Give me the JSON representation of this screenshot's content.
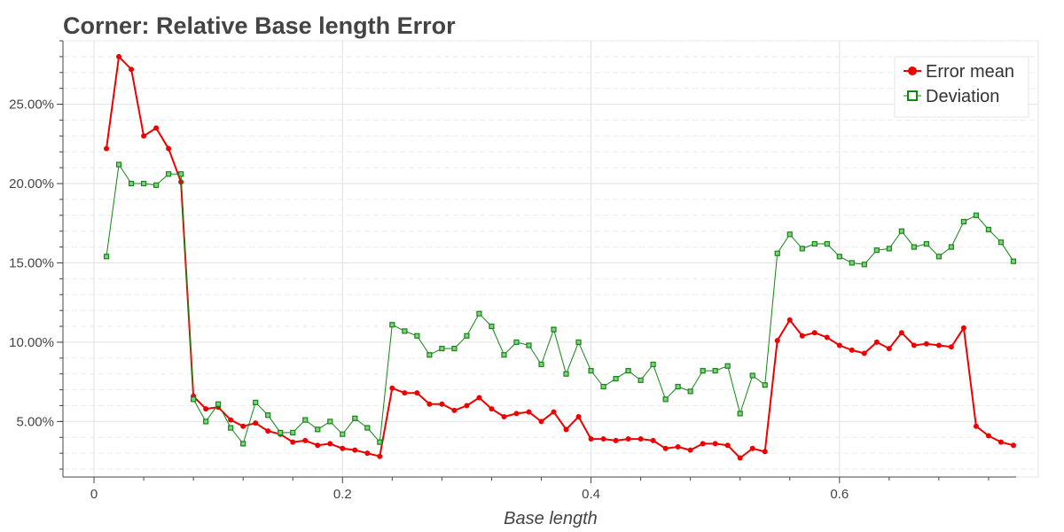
{
  "chart_data": {
    "type": "line",
    "title": "Corner: Relative Base length Error",
    "xlabel": "Base length",
    "ylabel": "",
    "xlim": [
      -0.025,
      0.76
    ],
    "ylim": [
      0.015,
      0.29
    ],
    "x_ticks": [
      {
        "value": 0,
        "label": "0"
      },
      {
        "value": 0.2,
        "label": "0.2"
      },
      {
        "value": 0.4,
        "label": "0.4"
      },
      {
        "value": 0.6,
        "label": "0.6"
      }
    ],
    "y_ticks": [
      {
        "value": 0.05,
        "label": "5.00%"
      },
      {
        "value": 0.1,
        "label": "10.00%"
      },
      {
        "value": 0.15,
        "label": "15.00%"
      },
      {
        "value": 0.2,
        "label": "20.00%"
      },
      {
        "value": 0.25,
        "label": "25.00%"
      }
    ],
    "grid": true,
    "legend_position": "top-right",
    "x": [
      0.01,
      0.02,
      0.03,
      0.04,
      0.05,
      0.06,
      0.07,
      0.08,
      0.09,
      0.1,
      0.11,
      0.12,
      0.13,
      0.14,
      0.15,
      0.16,
      0.17,
      0.18,
      0.19,
      0.2,
      0.21,
      0.22,
      0.23,
      0.24,
      0.25,
      0.26,
      0.27,
      0.28,
      0.29,
      0.3,
      0.31,
      0.32,
      0.33,
      0.34,
      0.35,
      0.36,
      0.37,
      0.38,
      0.39,
      0.4,
      0.41,
      0.42,
      0.43,
      0.44,
      0.45,
      0.46,
      0.47,
      0.48,
      0.49,
      0.5,
      0.51,
      0.52,
      0.53,
      0.54,
      0.55,
      0.56,
      0.57,
      0.58,
      0.59,
      0.6,
      0.61,
      0.62,
      0.63,
      0.64,
      0.65,
      0.66,
      0.67,
      0.68,
      0.69,
      0.7,
      0.71,
      0.72,
      0.73,
      0.74
    ],
    "series": [
      {
        "name": "Error mean",
        "color": "#ee0000",
        "marker": "circle",
        "values": [
          0.222,
          0.28,
          0.272,
          0.23,
          0.235,
          0.222,
          0.201,
          0.066,
          0.058,
          0.059,
          0.051,
          0.047,
          0.049,
          0.044,
          0.042,
          0.037,
          0.038,
          0.035,
          0.036,
          0.033,
          0.032,
          0.03,
          0.028,
          0.071,
          0.068,
          0.068,
          0.061,
          0.061,
          0.057,
          0.06,
          0.065,
          0.058,
          0.053,
          0.055,
          0.056,
          0.05,
          0.056,
          0.045,
          0.053,
          0.039,
          0.039,
          0.038,
          0.039,
          0.039,
          0.038,
          0.033,
          0.034,
          0.032,
          0.036,
          0.036,
          0.035,
          0.027,
          0.033,
          0.031,
          0.101,
          0.114,
          0.104,
          0.106,
          0.103,
          0.098,
          0.095,
          0.093,
          0.1,
          0.096,
          0.106,
          0.098,
          0.099,
          0.098,
          0.097,
          0.109,
          0.047,
          0.041,
          0.037,
          0.035
        ]
      },
      {
        "name": "Deviation",
        "color": "#118811",
        "marker": "square",
        "values": [
          0.154,
          0.212,
          0.2,
          0.2,
          0.199,
          0.206,
          0.206,
          0.064,
          0.05,
          0.061,
          0.046,
          0.036,
          0.062,
          0.054,
          0.043,
          0.043,
          0.051,
          0.045,
          0.05,
          0.042,
          0.052,
          0.046,
          0.037,
          0.111,
          0.107,
          0.104,
          0.092,
          0.096,
          0.096,
          0.104,
          0.118,
          0.11,
          0.092,
          0.1,
          0.098,
          0.086,
          0.108,
          0.08,
          0.1,
          0.082,
          0.072,
          0.077,
          0.082,
          0.076,
          0.086,
          0.064,
          0.072,
          0.069,
          0.082,
          0.082,
          0.085,
          0.055,
          0.079,
          0.073,
          0.156,
          0.168,
          0.159,
          0.162,
          0.162,
          0.154,
          0.15,
          0.149,
          0.158,
          0.159,
          0.17,
          0.16,
          0.162,
          0.154,
          0.16,
          0.176,
          0.18,
          0.171,
          0.163,
          0.151
        ]
      }
    ]
  }
}
